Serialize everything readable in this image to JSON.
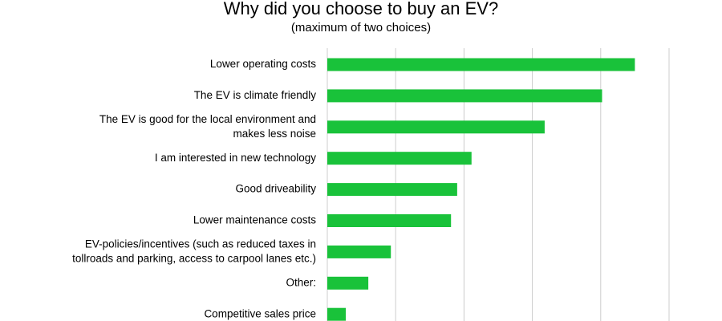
{
  "chart_data": {
    "type": "bar",
    "orientation": "horizontal",
    "title": "Why did you choose to buy an EV?",
    "subtitle": "(maximum of two choices)",
    "categories": [
      [
        "Lower operating costs"
      ],
      [
        "The EV is climate friendly"
      ],
      [
        "The EV is good for the local environment and",
        "makes less noise"
      ],
      [
        "I am interested in new technology"
      ],
      [
        "Good driveability"
      ],
      [
        "Lower maintenance costs"
      ],
      [
        "EV-policies/incentives (such as reduced taxes in",
        "tollroads and parking, access to carpool lanes etc.)"
      ],
      [
        "Other:"
      ],
      [
        "Competitive sales price"
      ]
    ],
    "values": [
      45,
      40.2,
      31.8,
      21.1,
      19,
      18.1,
      9.3,
      6,
      2.7
    ],
    "xlim": [
      0,
      50
    ],
    "grid": true,
    "bar_color": "#19c23a",
    "grid_color": "#cccccc"
  }
}
